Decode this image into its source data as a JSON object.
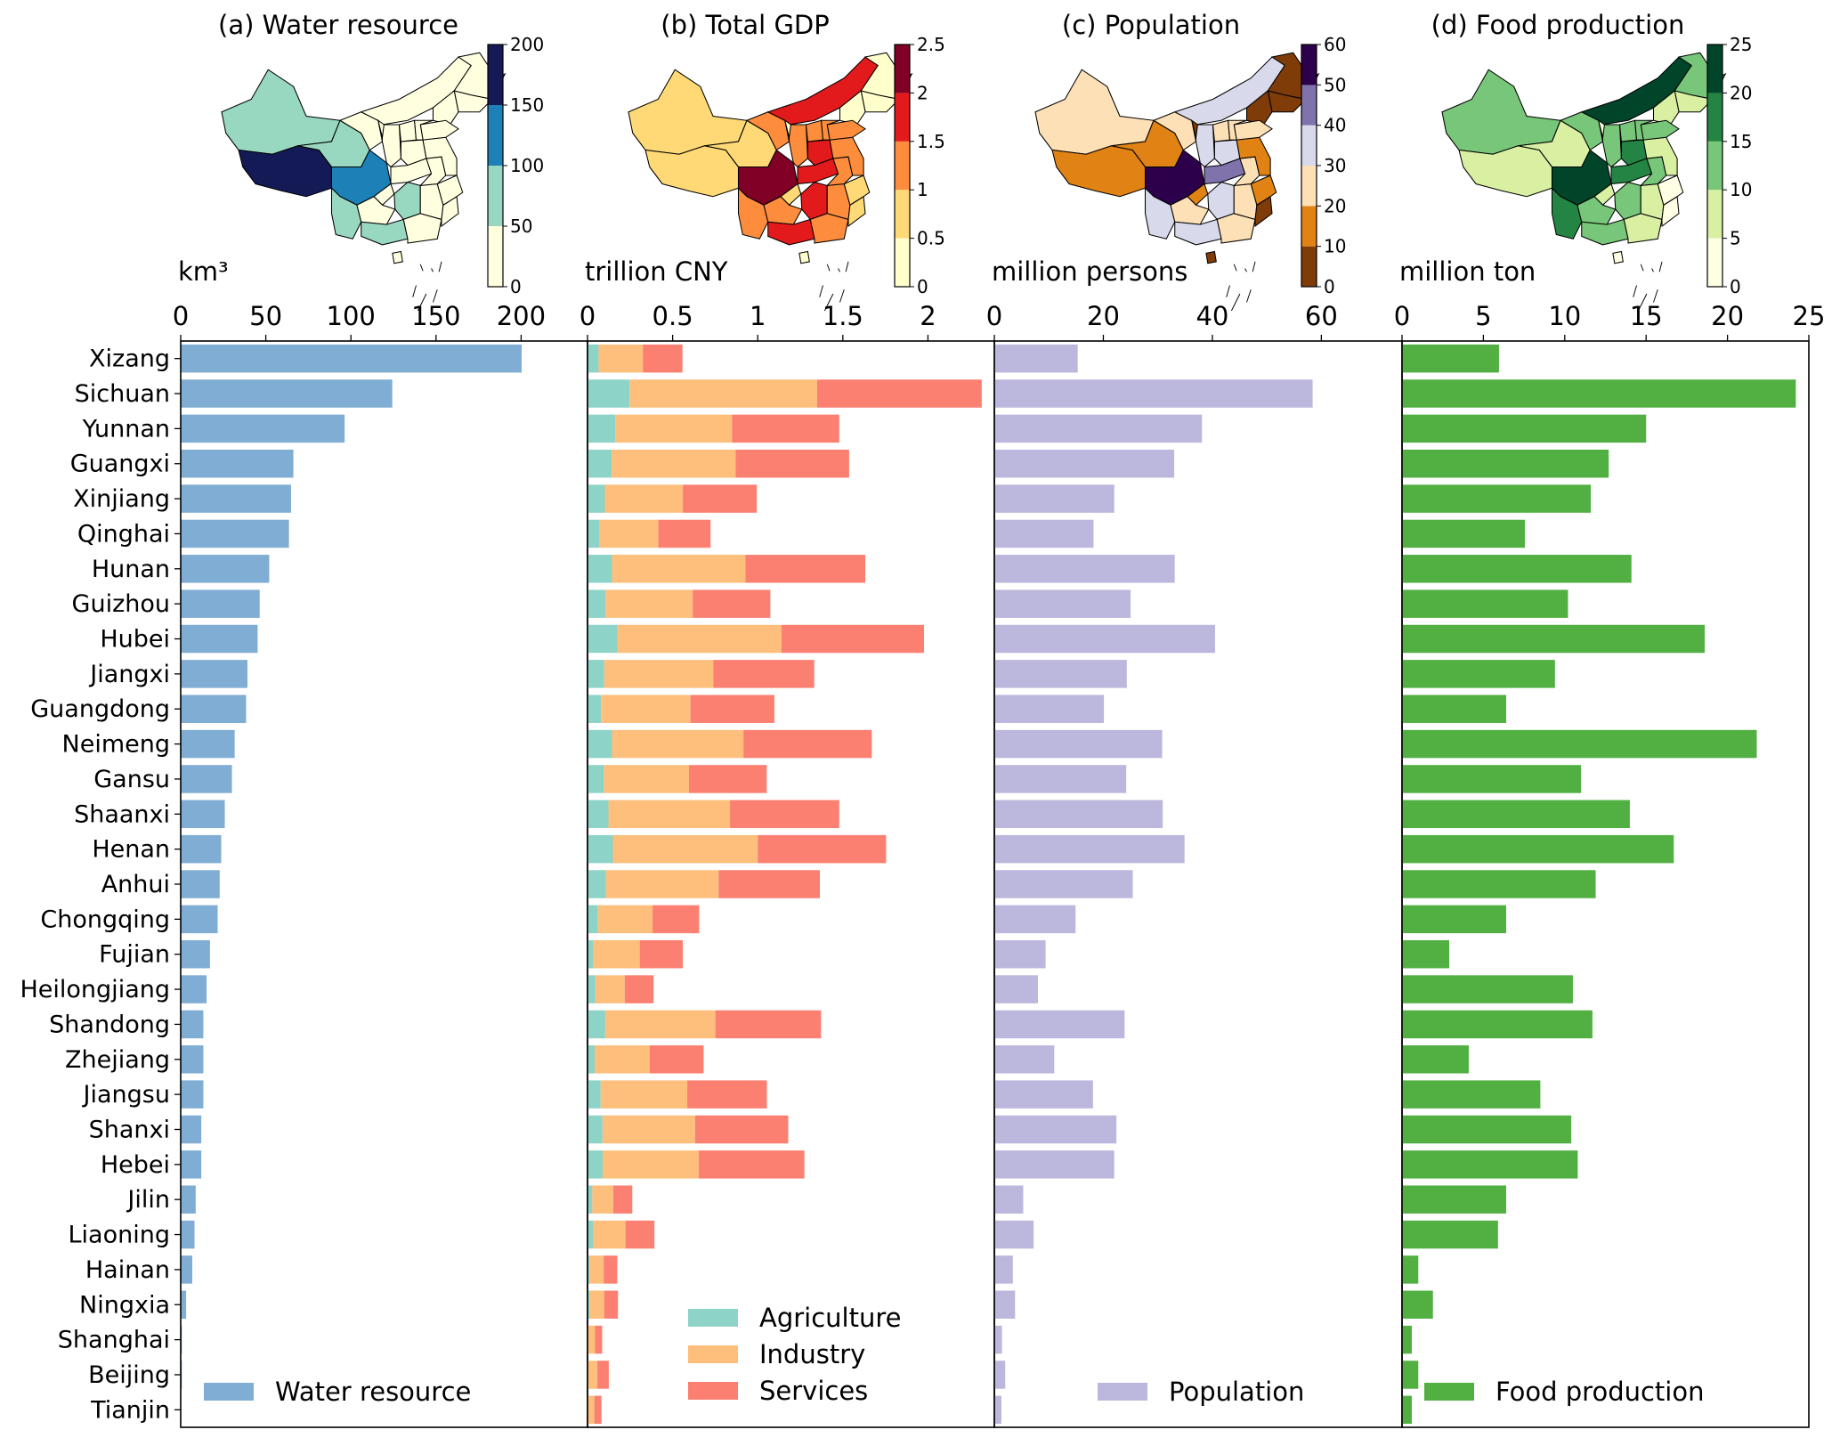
{
  "chart_data": {
    "type": "bar",
    "layout": "four horizontal bar panels sharing province categories, each with a choropleth map inset",
    "categories": [
      "Xizang",
      "Sichuan",
      "Yunnan",
      "Guangxi",
      "Xinjiang",
      "Qinghai",
      "Hunan",
      "Guizhou",
      "Hubei",
      "Jiangxi",
      "Guangdong",
      "Neimeng",
      "Gansu",
      "Shaanxi",
      "Henan",
      "Anhui",
      "Chongqing",
      "Fujian",
      "Heilongjiang",
      "Shandong",
      "Zhejiang",
      "Jiangsu",
      "Shanxi",
      "Hebei",
      "Jilin",
      "Liaoning",
      "Hainan",
      "Ningxia",
      "Shanghai",
      "Beijing",
      "Tianjin"
    ],
    "panels": [
      {
        "id": "a",
        "title": "(a) Water resource",
        "unit_label": "km³",
        "xlim": [
          0,
          239
        ],
        "xticks": [
          0,
          50,
          100,
          150,
          200
        ],
        "xtick_labels": [
          "0",
          "50",
          "100",
          "150",
          "200"
        ],
        "stacked": false,
        "series": [
          {
            "name": "Water resource",
            "color": "#7fadd3",
            "values": [
              200.3,
              124.3,
              96.3,
              66.2,
              64.8,
              63.6,
              52.0,
              46.4,
              45.2,
              39.2,
              38.4,
              31.7,
              30.1,
              25.9,
              23.8,
              22.9,
              21.7,
              17.2,
              15.2,
              13.3,
              13.3,
              13.3,
              12.1,
              12.1,
              8.8,
              8.1,
              6.8,
              3.2,
              0.7,
              0.7,
              0.1
            ]
          }
        ],
        "legend": {
          "placement": "lower-left",
          "entries": [
            "Water resource"
          ]
        },
        "colorbar": {
          "ticks": [
            "0",
            "50",
            "100",
            "150",
            "200"
          ],
          "colors": [
            "#ffffe0",
            "#99d8c0",
            "#1d80b7",
            "#131a55"
          ]
        }
      },
      {
        "id": "b",
        "title": "(b) Total GDP",
        "unit_label": "trillion CNY",
        "xlim": [
          0,
          2.39
        ],
        "xticks": [
          0,
          0.5,
          1,
          1.5,
          2
        ],
        "xtick_labels": [
          "0",
          "0.5",
          "1",
          "1.5",
          "2"
        ],
        "stacked": true,
        "series": [
          {
            "name": "Agriculture",
            "color": "#8dd3c7",
            "values": [
              0.065,
              0.247,
              0.163,
              0.142,
              0.102,
              0.07,
              0.144,
              0.105,
              0.175,
              0.098,
              0.079,
              0.144,
              0.096,
              0.123,
              0.149,
              0.109,
              0.061,
              0.035,
              0.046,
              0.104,
              0.042,
              0.077,
              0.088,
              0.089,
              0.028,
              0.035,
              0.011,
              0.012,
              0.002,
              0.002,
              0.002
            ]
          },
          {
            "name": "Industry",
            "color": "#fdbf7b",
            "values": [
              0.26,
              1.102,
              0.686,
              0.728,
              0.458,
              0.346,
              0.784,
              0.513,
              0.964,
              0.641,
              0.526,
              0.772,
              0.5,
              0.714,
              0.851,
              0.661,
              0.321,
              0.272,
              0.173,
              0.647,
              0.323,
              0.509,
              0.544,
              0.565,
              0.123,
              0.188,
              0.084,
              0.086,
              0.042,
              0.056,
              0.038
            ]
          },
          {
            "name": "Services",
            "color": "#fb8072",
            "values": [
              0.233,
              0.967,
              0.63,
              0.667,
              0.435,
              0.307,
              0.704,
              0.456,
              0.838,
              0.593,
              0.493,
              0.754,
              0.457,
              0.642,
              0.754,
              0.595,
              0.274,
              0.253,
              0.169,
              0.621,
              0.317,
              0.468,
              0.547,
              0.62,
              0.112,
              0.17,
              0.08,
              0.081,
              0.042,
              0.067,
              0.042
            ]
          }
        ],
        "legend": {
          "placement": "lower-center",
          "entries": [
            "Agriculture",
            "Industry",
            "Services"
          ]
        },
        "colorbar": {
          "ticks": [
            "0",
            "0.5",
            "1",
            "1.5",
            "2",
            "2.5"
          ],
          "colors": [
            "#ffffcc",
            "#fed976",
            "#fd8d3c",
            "#e31a1c",
            "#800026"
          ]
        }
      },
      {
        "id": "c",
        "title": "(c) Population",
        "unit_label": "million persons",
        "xlim": [
          0,
          74.8
        ],
        "xticks": [
          0,
          20,
          40,
          60
        ],
        "xtick_labels": [
          "0",
          "20",
          "40",
          "60"
        ],
        "stacked": false,
        "series": [
          {
            "name": "Population",
            "color": "#bcb7dc",
            "values": [
              15.3,
              58.4,
              38.1,
              33.0,
              22.0,
              18.2,
              33.1,
              25.0,
              40.5,
              24.3,
              20.1,
              30.8,
              24.2,
              30.9,
              34.9,
              25.4,
              14.9,
              9.4,
              8.0,
              23.9,
              11.0,
              18.1,
              22.4,
              22.0,
              5.3,
              7.2,
              3.4,
              3.8,
              1.4,
              2.0,
              1.3
            ]
          }
        ],
        "legend": {
          "placement": "lower-right",
          "entries": [
            "Population"
          ]
        },
        "colorbar": {
          "ticks": [
            "0",
            "10",
            "20",
            "30",
            "40",
            "50",
            "60"
          ],
          "colors": [
            "#7f3b08",
            "#e08214",
            "#fee0b6",
            "#d8daeb",
            "#8073ac",
            "#2d004b"
          ]
        }
      },
      {
        "id": "d",
        "title": "(d) Food production",
        "unit_label": "million ton",
        "xlim": [
          0,
          25
        ],
        "xticks": [
          0,
          5,
          10,
          15,
          20,
          25
        ],
        "xtick_labels": [
          "0",
          "5",
          "10",
          "15",
          "20",
          "25"
        ],
        "stacked": false,
        "series": [
          {
            "name": "Food production",
            "color": "#52b043",
            "values": [
              5.96,
              24.2,
              15.0,
              12.7,
              11.6,
              7.55,
              14.1,
              10.2,
              18.6,
              9.4,
              6.4,
              21.8,
              11.0,
              14.0,
              16.7,
              11.9,
              6.4,
              2.9,
              10.5,
              11.7,
              4.1,
              8.5,
              10.4,
              10.8,
              6.4,
              5.9,
              1.0,
              1.9,
              0.6,
              1.0,
              0.6
            ]
          }
        ],
        "legend": {
          "placement": "lower-right",
          "entries": [
            "Food production"
          ]
        },
        "colorbar": {
          "ticks": [
            "0",
            "5",
            "10",
            "15",
            "20",
            "25"
          ],
          "colors": [
            "#ffffe5",
            "#d9f0a3",
            "#78c679",
            "#238443",
            "#004529"
          ]
        }
      }
    ]
  }
}
